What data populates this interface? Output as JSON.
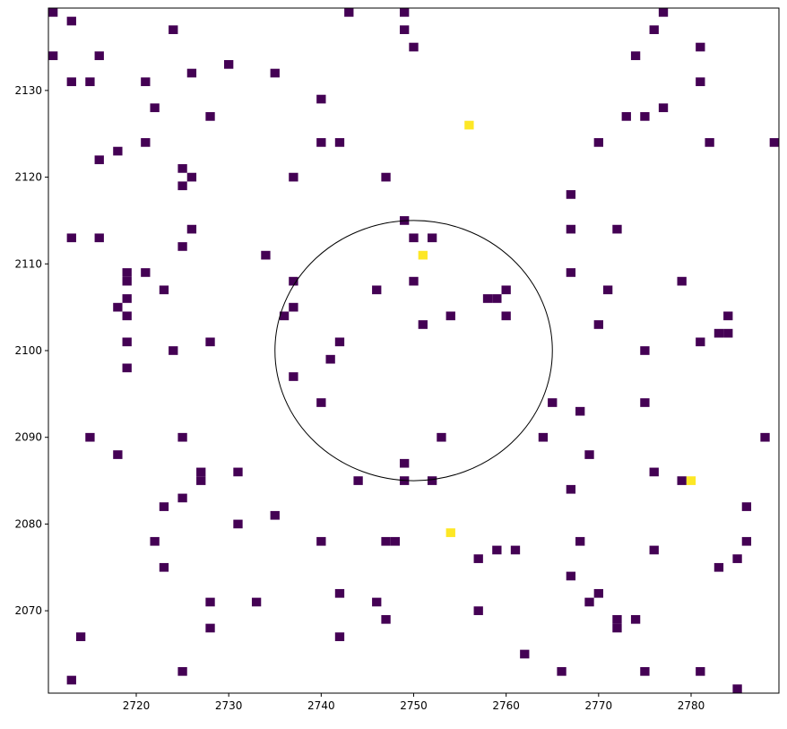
{
  "chart_data": {
    "type": "heatmap",
    "title": "",
    "xlabel": "",
    "ylabel": "",
    "xlim": [
      2710.5,
      2789.5
    ],
    "ylim": [
      2060.5,
      2139.5
    ],
    "cell_size": 1,
    "grid": false,
    "colormap": "viridis",
    "colors": {
      "low": "#440154",
      "high": "#fde725",
      "circle": "#000000",
      "background": "#ffffff"
    },
    "x_ticks": [
      2720,
      2730,
      2740,
      2750,
      2760,
      2770,
      2780
    ],
    "y_ticks": [
      2070,
      2080,
      2090,
      2100,
      2110,
      2120,
      2130
    ],
    "circle": {
      "center": [
        2750,
        2100
      ],
      "radius": 15
    },
    "high_cells": [
      [
        2756,
        2126
      ],
      [
        2751,
        2111
      ],
      [
        2754,
        2079
      ],
      [
        2780,
        2085
      ]
    ],
    "low_cells": [
      [
        2711,
        2139
      ],
      [
        2724,
        2137
      ],
      [
        2743,
        2139
      ],
      [
        2749,
        2139
      ],
      [
        2749,
        2137
      ],
      [
        2750,
        2135
      ],
      [
        2777,
        2139
      ],
      [
        2776,
        2137
      ],
      [
        2781,
        2135
      ],
      [
        2774,
        2134
      ],
      [
        2711,
        2134
      ],
      [
        2713,
        2138
      ],
      [
        2716,
        2134
      ],
      [
        2713,
        2131
      ],
      [
        2715,
        2131
      ],
      [
        2721,
        2131
      ],
      [
        2726,
        2132
      ],
      [
        2730,
        2133
      ],
      [
        2735,
        2132
      ],
      [
        2781,
        2131
      ],
      [
        2740,
        2129
      ],
      [
        2722,
        2128
      ],
      [
        2728,
        2127
      ],
      [
        2773,
        2127
      ],
      [
        2775,
        2127
      ],
      [
        2777,
        2128
      ],
      [
        2721,
        2124
      ],
      [
        2718,
        2123
      ],
      [
        2716,
        2122
      ],
      [
        2740,
        2124
      ],
      [
        2742,
        2124
      ],
      [
        2770,
        2124
      ],
      [
        2782,
        2124
      ],
      [
        2789,
        2124
      ],
      [
        2725,
        2121
      ],
      [
        2726,
        2120
      ],
      [
        2725,
        2119
      ],
      [
        2737,
        2120
      ],
      [
        2747,
        2120
      ],
      [
        2767,
        2118
      ],
      [
        2749,
        2115
      ],
      [
        2790,
        2116
      ],
      [
        2713,
        2113
      ],
      [
        2716,
        2113
      ],
      [
        2726,
        2114
      ],
      [
        2725,
        2112
      ],
      [
        2750,
        2113
      ],
      [
        2752,
        2113
      ],
      [
        2767,
        2114
      ],
      [
        2772,
        2114
      ],
      [
        2734,
        2111
      ],
      [
        2719,
        2109
      ],
      [
        2719,
        2108
      ],
      [
        2721,
        2109
      ],
      [
        2719,
        2106
      ],
      [
        2723,
        2107
      ],
      [
        2737,
        2108
      ],
      [
        2746,
        2107
      ],
      [
        2750,
        2108
      ],
      [
        2767,
        2109
      ],
      [
        2771,
        2107
      ],
      [
        2779,
        2108
      ],
      [
        2718,
        2105
      ],
      [
        2719,
        2104
      ],
      [
        2737,
        2105
      ],
      [
        2736,
        2104
      ],
      [
        2758,
        2106
      ],
      [
        2759,
        2106
      ],
      [
        2760,
        2107
      ],
      [
        2754,
        2104
      ],
      [
        2760,
        2104
      ],
      [
        2751,
        2103
      ],
      [
        2770,
        2103
      ],
      [
        2784,
        2104
      ],
      [
        2783,
        2102
      ],
      [
        2784,
        2102
      ],
      [
        2719,
        2101
      ],
      [
        2728,
        2101
      ],
      [
        2742,
        2101
      ],
      [
        2781,
        2101
      ],
      [
        2724,
        2100
      ],
      [
        2741,
        2099
      ],
      [
        2775,
        2100
      ],
      [
        2719,
        2098
      ],
      [
        2737,
        2097
      ],
      [
        2740,
        2094
      ],
      [
        2765,
        2094
      ],
      [
        2768,
        2093
      ],
      [
        2775,
        2094
      ],
      [
        2715,
        2090
      ],
      [
        2725,
        2090
      ],
      [
        2753,
        2090
      ],
      [
        2764,
        2090
      ],
      [
        2788,
        2090
      ],
      [
        2718,
        2088
      ],
      [
        2749,
        2087
      ],
      [
        2769,
        2088
      ],
      [
        2727,
        2086
      ],
      [
        2727,
        2085
      ],
      [
        2731,
        2086
      ],
      [
        2744,
        2085
      ],
      [
        2749,
        2085
      ],
      [
        2752,
        2085
      ],
      [
        2776,
        2086
      ],
      [
        2779,
        2085
      ],
      [
        2767,
        2084
      ],
      [
        2725,
        2083
      ],
      [
        2723,
        2082
      ],
      [
        2786,
        2082
      ],
      [
        2735,
        2081
      ],
      [
        2731,
        2080
      ],
      [
        2722,
        2078
      ],
      [
        2740,
        2078
      ],
      [
        2747,
        2078
      ],
      [
        2748,
        2078
      ],
      [
        2768,
        2078
      ],
      [
        2786,
        2078
      ],
      [
        2759,
        2077
      ],
      [
        2761,
        2077
      ],
      [
        2776,
        2077
      ],
      [
        2757,
        2076
      ],
      [
        2785,
        2076
      ],
      [
        2723,
        2075
      ],
      [
        2783,
        2075
      ],
      [
        2767,
        2074
      ],
      [
        2770,
        2072
      ],
      [
        2742,
        2072
      ],
      [
        2728,
        2071
      ],
      [
        2733,
        2071
      ],
      [
        2746,
        2071
      ],
      [
        2769,
        2071
      ],
      [
        2757,
        2070
      ],
      [
        2747,
        2069
      ],
      [
        2772,
        2069
      ],
      [
        2774,
        2069
      ],
      [
        2790,
        2069
      ],
      [
        2728,
        2068
      ],
      [
        2772,
        2068
      ],
      [
        2714,
        2067
      ],
      [
        2742,
        2067
      ],
      [
        2762,
        2065
      ],
      [
        2725,
        2063
      ],
      [
        2766,
        2063
      ],
      [
        2775,
        2063
      ],
      [
        2781,
        2063
      ],
      [
        2713,
        2062
      ],
      [
        2785,
        2061
      ],
      [
        2723,
        2060
      ],
      [
        2737,
        2060
      ],
      [
        2752,
        2060
      ],
      [
        2783,
        2060
      ]
    ]
  }
}
